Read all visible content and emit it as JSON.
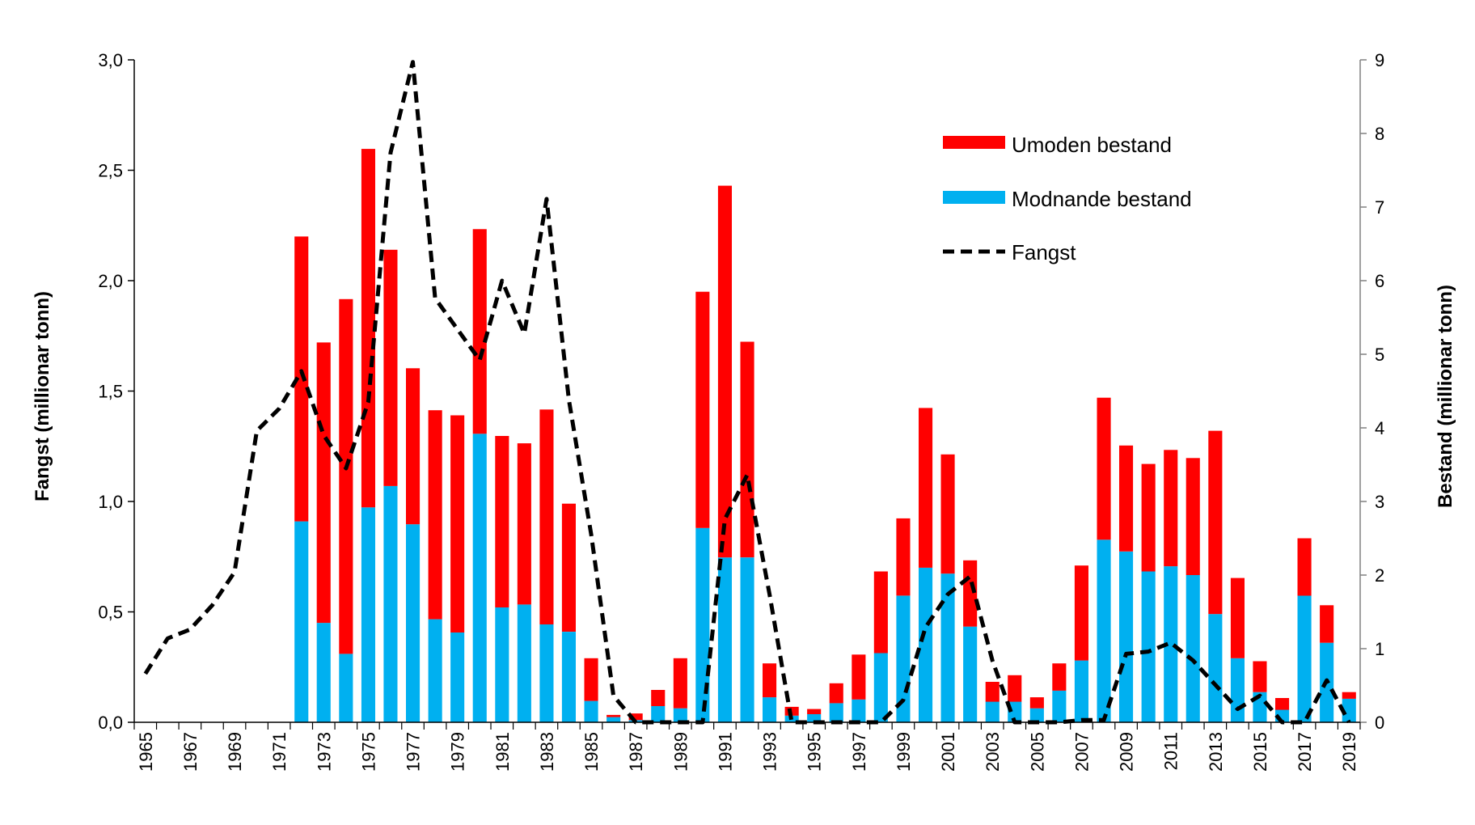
{
  "chart_data": {
    "type": "bar",
    "stacked": true,
    "title": "",
    "x": [
      1965,
      1966,
      1967,
      1968,
      1969,
      1970,
      1971,
      1972,
      1973,
      1974,
      1975,
      1976,
      1977,
      1978,
      1979,
      1980,
      1981,
      1982,
      1983,
      1984,
      1985,
      1986,
      1987,
      1988,
      1989,
      1990,
      1991,
      1992,
      1993,
      1994,
      1995,
      1996,
      1997,
      1998,
      1999,
      2000,
      2001,
      2002,
      2003,
      2004,
      2005,
      2006,
      2007,
      2008,
      2009,
      2010,
      2011,
      2012,
      2013,
      2014,
      2015,
      2016,
      2017,
      2018,
      2019
    ],
    "x_tick_labels": [
      "1965",
      "1967",
      "1969",
      "1971",
      "1973",
      "1975",
      "1977",
      "1979",
      "1981",
      "1983",
      "1985",
      "1987",
      "1989",
      "1991",
      "1993",
      "1995",
      "1997",
      "1999",
      "2001",
      "2003",
      "2005",
      "2007",
      "2009",
      "2011",
      "2013",
      "2015",
      "2017",
      "2019"
    ],
    "ylabel_left": "Fangst (millionar tonn)",
    "ylabel_right": "Bestand (millionar tonn)",
    "ylim_left": [
      0,
      3.0
    ],
    "ylim_right": [
      0,
      9
    ],
    "left_ticks": [
      "0,0",
      "0,5",
      "1,0",
      "1,5",
      "2,0",
      "2,5",
      "3,0"
    ],
    "right_ticks": [
      "0",
      "1",
      "2",
      "3",
      "4",
      "5",
      "6",
      "7",
      "8",
      "9"
    ],
    "legend_position": "top-right",
    "colors": {
      "umoden": "#ff0000",
      "modnande": "#00b0f0",
      "fangst": "#000000"
    },
    "series": [
      {
        "name": "Umoden bestand",
        "axis": "right",
        "kind": "bar",
        "values": [
          null,
          null,
          null,
          null,
          null,
          null,
          null,
          3.87,
          3.81,
          4.82,
          4.87,
          3.21,
          2.12,
          2.84,
          2.95,
          2.78,
          2.33,
          2.19,
          2.92,
          1.74,
          0.58,
          0.03,
          0.09,
          0.22,
          0.68,
          3.21,
          5.05,
          2.93,
          0.46,
          0.12,
          0.07,
          0.27,
          0.61,
          1.11,
          1.05,
          2.17,
          1.62,
          0.9,
          0.27,
          0.36,
          0.15,
          0.37,
          1.29,
          1.93,
          1.44,
          1.46,
          1.58,
          1.59,
          2.49,
          1.09,
          0.42,
          0.16,
          0.78,
          0.51,
          0.09
        ]
      },
      {
        "name": "Modnande bestand",
        "axis": "right",
        "kind": "bar",
        "values": [
          null,
          null,
          null,
          null,
          null,
          null,
          null,
          2.73,
          1.35,
          0.93,
          2.92,
          3.21,
          2.69,
          1.4,
          1.22,
          3.92,
          1.56,
          1.6,
          1.33,
          1.23,
          0.29,
          0.07,
          0.03,
          0.22,
          0.19,
          2.64,
          2.24,
          2.24,
          0.34,
          0.09,
          0.11,
          0.26,
          0.31,
          0.94,
          1.72,
          2.1,
          2.02,
          1.3,
          0.28,
          0.28,
          0.19,
          0.43,
          0.84,
          2.48,
          2.32,
          2.05,
          2.12,
          2.0,
          1.47,
          0.87,
          0.41,
          0.17,
          1.72,
          1.08,
          0.32
        ]
      },
      {
        "name": "Fangst",
        "axis": "left",
        "kind": "line",
        "style": "dashed",
        "values": [
          0.22,
          0.38,
          0.42,
          0.53,
          0.68,
          1.32,
          1.42,
          1.59,
          1.3,
          1.15,
          1.45,
          2.58,
          2.99,
          1.92,
          1.78,
          1.64,
          2.0,
          1.76,
          2.37,
          1.46,
          0.85,
          0.12,
          0.0,
          0.0,
          0.0,
          0.0,
          0.92,
          1.12,
          0.58,
          0.0,
          0.0,
          0.0,
          0.0,
          0.0,
          0.1,
          0.43,
          0.58,
          0.66,
          0.28,
          0.0,
          0.0,
          0.0,
          0.01,
          0.01,
          0.31,
          0.32,
          0.36,
          0.28,
          0.17,
          0.06,
          0.12,
          0.0,
          0.0,
          0.19,
          0.0
        ]
      }
    ]
  }
}
